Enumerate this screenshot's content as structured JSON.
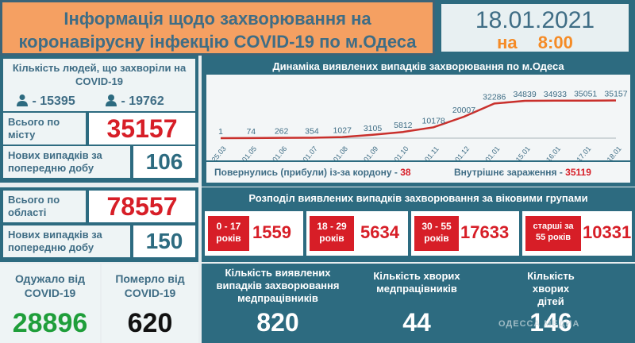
{
  "header": {
    "title_line1": "Інформація щодо захворювання на",
    "title_line2": "коронавірусну інфекцію COVID-19 по м.Одеса",
    "date": "18.01.2021",
    "time_prefix": "на",
    "time": "8:00"
  },
  "city": {
    "heading": "Кількість людей, що захворіли на COVID-19",
    "male_count": "- 15395",
    "female_count": "- 19762",
    "total_label": "Всього по місту",
    "total_value": "35157",
    "new_label": "Нових випадків за попередню добу",
    "new_value": "106"
  },
  "region": {
    "total_label": "Всього по області",
    "total_value": "78557",
    "new_label": "Нових випадків за попередню добу",
    "new_value": "150"
  },
  "chart_data": {
    "type": "line",
    "title": "Динаміка виявлених випадків захворювання по м.Одеса",
    "categories": [
      "25.03",
      "01.05",
      "01.06",
      "01.07",
      "01.08",
      "01.09",
      "01.10",
      "01.11",
      "01.12",
      "01.01",
      "15.01",
      "16.01",
      "17.01",
      "18.01"
    ],
    "values": [
      1,
      74,
      262,
      354,
      1027,
      3105,
      5812,
      10178,
      20007,
      32286,
      34839,
      34933,
      35051,
      35157
    ],
    "labels": [
      "1",
      "74",
      "262",
      "354",
      "1027",
      "3105",
      "5812",
      "10178",
      "20007",
      "32286",
      "34839",
      "34933",
      "35051",
      "35157"
    ],
    "ylim": [
      0,
      40000
    ],
    "grid": false,
    "colors": {
      "line": "#c9302c",
      "axis": "#aab4b8"
    }
  },
  "chart_footer": {
    "returned_label": "Повернулись (прибули) із-за кордону -",
    "returned_value": "38",
    "local_label": "Внутрішнє зараження -",
    "local_value": "35119"
  },
  "age": {
    "title": "Розподіл виявлених випадків захворювання за віковими групами",
    "groups": [
      {
        "label": "0 - 17 років",
        "value": "1559"
      },
      {
        "label": "18 - 29 років",
        "value": "5634"
      },
      {
        "label": "30 - 55 років",
        "value": "17633"
      },
      {
        "label": "старші за 55 років",
        "value": "10331"
      }
    ]
  },
  "outcomes": {
    "recovered_label": "Одужало від COVID-19",
    "recovered_value": "28896",
    "died_label": "Померло від COVID-19",
    "died_value": "620"
  },
  "medical": {
    "detected_label": "Кількість виявлених випадків захворювання медпрацівників",
    "detected_value": "820",
    "sick_label": "Кількість хворих медпрацівників",
    "sick_value": "44",
    "children_label": "Кількість хворих дітей",
    "children_value": "146"
  },
  "watermark": "ОДЕССА МЕДИА",
  "colors": {
    "navy": "#2d6b80",
    "orange": "#f5a062",
    "red": "#d71e27",
    "green": "#1f9e3a",
    "accent_time": "#f58b26"
  }
}
